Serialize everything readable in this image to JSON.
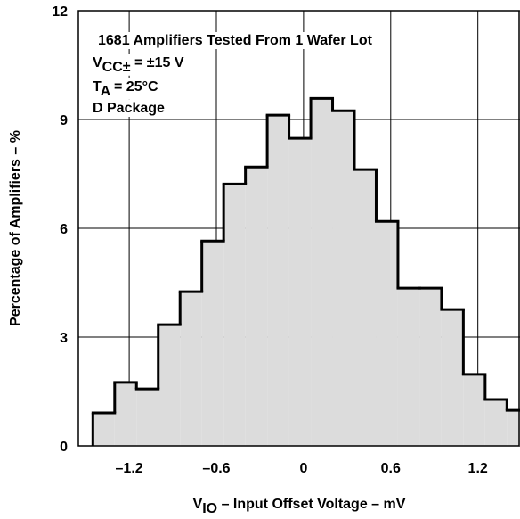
{
  "chart_data": {
    "type": "histogram",
    "annotations": [
      {
        "parts": [
          {
            "text": "1681 Amplifiers Tested From 1 Wafer Lot"
          }
        ]
      },
      {
        "parts": [
          {
            "text": "V"
          },
          {
            "text": "CC±",
            "sub": true
          },
          {
            "text": " = ±15 V"
          }
        ]
      },
      {
        "parts": [
          {
            "text": "T"
          },
          {
            "text": "A",
            "sub": true
          },
          {
            "text": " = 25°C"
          }
        ]
      },
      {
        "parts": [
          {
            "text": "D Package"
          }
        ]
      }
    ],
    "x_label": [
      {
        "text": "V"
      },
      {
        "text": "IO",
        "sub": true
      },
      {
        "text": " – Input Offset Voltage – mV"
      }
    ],
    "y_label": "Percentage of Amplifiers – %",
    "bins": [
      -1.45,
      -1.3,
      -1.15,
      -1.0,
      -0.85,
      -0.7,
      -0.55,
      -0.4,
      -0.25,
      -0.1,
      0.05,
      0.2,
      0.35,
      0.5,
      0.65,
      0.8,
      0.95,
      1.1,
      1.25,
      1.4,
      1.55
    ],
    "values": [
      0.91,
      1.75,
      1.57,
      3.34,
      4.25,
      5.65,
      7.22,
      7.69,
      9.12,
      8.48,
      9.58,
      9.24,
      7.62,
      6.19,
      4.35,
      4.35,
      3.76,
      1.97,
      1.28,
      0.98
    ],
    "color": "#dcdcdc",
    "xlim": [
      -1.55,
      1.49
    ],
    "ylim": [
      0,
      12
    ],
    "xticks": [
      {
        "value": -1.2,
        "label": "–1.2"
      },
      {
        "value": -0.6,
        "label": "–0.6"
      },
      0,
      0.6,
      1.2
    ],
    "yticks": [
      0,
      3,
      6,
      9,
      12
    ],
    "grid": true
  }
}
